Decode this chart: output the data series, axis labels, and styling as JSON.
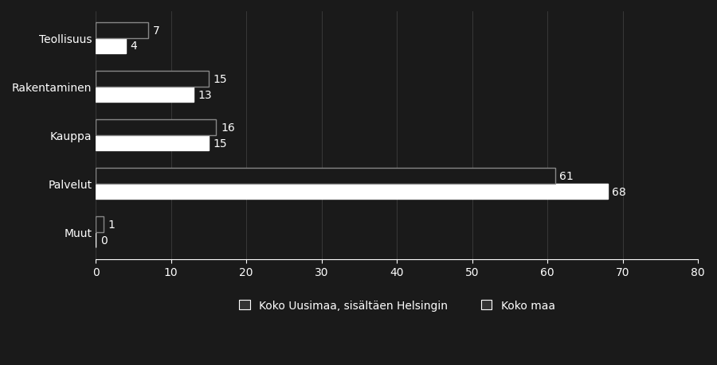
{
  "categories": [
    "Teollisuus",
    "Rakentaminen",
    "Kauppa",
    "Palvelut",
    "Muut"
  ],
  "uusimaa": [
    4,
    13,
    15,
    68,
    0
  ],
  "koko_maa": [
    7,
    15,
    16,
    61,
    1
  ],
  "uusimaa_color": "#ffffff",
  "koko_maa_color": "#1a1a1a",
  "uusimaa_edge": "#ffffff",
  "koko_maa_edge": "#888888",
  "background_color": "#1a1a1a",
  "text_color": "#ffffff",
  "bar_height": 0.32,
  "xlim": [
    0,
    80
  ],
  "xticks": [
    0,
    10,
    20,
    30,
    40,
    50,
    60,
    70,
    80
  ],
  "legend_label_uusimaa": "Koko Uusimaa, sisältäen Helsingin",
  "legend_label_koko_maa": "Koko maa",
  "label_fontsize": 10,
  "tick_fontsize": 10,
  "legend_fontsize": 10,
  "grid_color": "#444444"
}
